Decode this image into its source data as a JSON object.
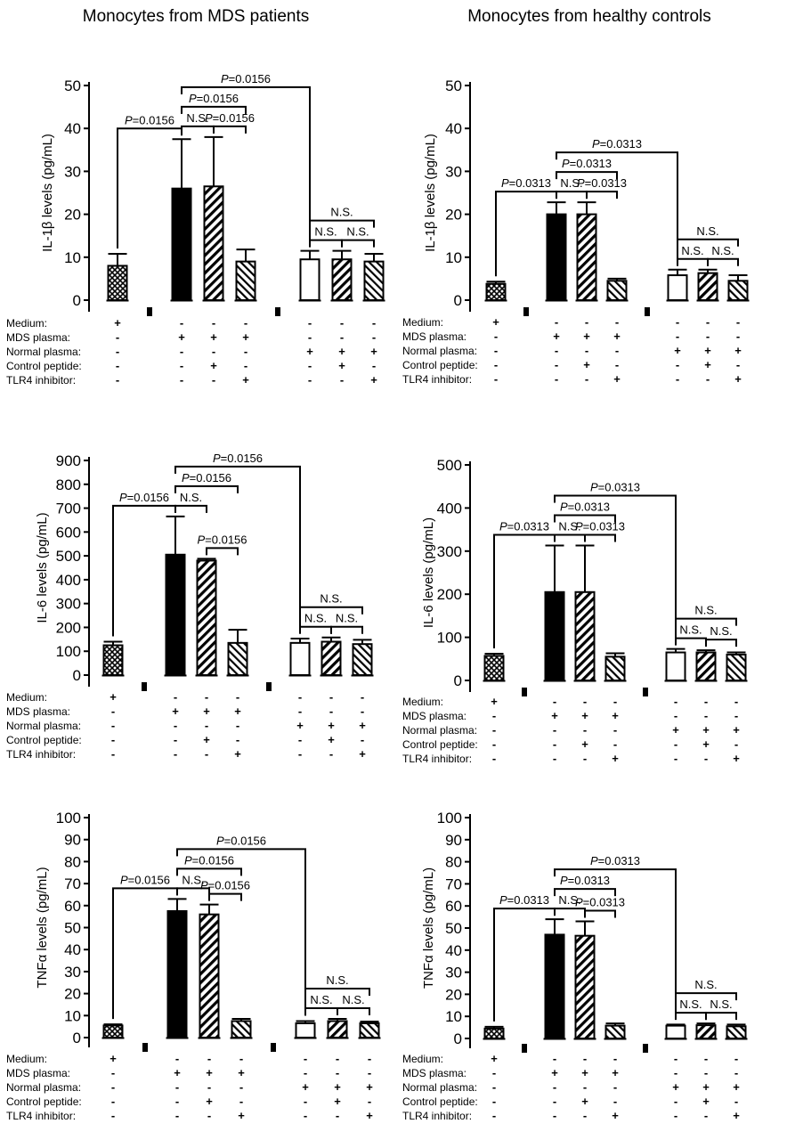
{
  "columns": {
    "left_title": "Monocytes from MDS patients",
    "right_title": "Monocytes from healthy controls"
  },
  "condition_labels": [
    "Medium:",
    "MDS plasma:",
    "Normal plasma:",
    "Control peptide:",
    "TLR4 inhibitor:"
  ],
  "condition_signs": [
    [
      "+",
      "",
      "-",
      "-",
      "-",
      "",
      "-",
      "-",
      "-"
    ],
    [
      "-",
      "",
      "+",
      "+",
      "+",
      "",
      "-",
      "-",
      "-"
    ],
    [
      "-",
      "",
      "-",
      "-",
      "-",
      "",
      "+",
      "+",
      "+"
    ],
    [
      "-",
      "",
      "-",
      "+",
      "-",
      "",
      "-",
      "+",
      "-"
    ],
    [
      "-",
      "",
      "-",
      "-",
      "+",
      "",
      "-",
      "-",
      "+"
    ]
  ],
  "bar_styles": [
    "crosshatch",
    "break",
    "solid",
    "diag",
    "diag-rev",
    "break",
    "open",
    "diag",
    "diag-rev"
  ],
  "chart_data": [
    {
      "id": "il1b-mds",
      "type": "bar",
      "column": "left",
      "ylabel": "IL-1β levels (pg/mL)",
      "ylim": [
        0,
        50
      ],
      "yticks": [
        0,
        10,
        20,
        30,
        40,
        50
      ],
      "bar_values": [
        8,
        null,
        26,
        26.5,
        9,
        null,
        9.5,
        9.5,
        9
      ],
      "bar_errors": [
        2.8,
        null,
        11.5,
        11.5,
        2.8,
        null,
        2,
        2,
        1.8
      ],
      "annotations": [
        {
          "from": 0,
          "to": 2,
          "label_prefix": "P",
          "label": "=0.0156"
        },
        {
          "from": 2,
          "to": 3,
          "label_prefix": "",
          "label": "N.S."
        },
        {
          "from": 3,
          "to": 4,
          "label_prefix": "P",
          "label": "=0.0156"
        },
        {
          "from": 2,
          "to": 4,
          "label_prefix": "P",
          "label": "=0.0156"
        },
        {
          "from": 2,
          "to": 6,
          "label_prefix": "P",
          "label": "=0.0156"
        },
        {
          "from": 6,
          "to": 7,
          "label_prefix": "",
          "label": "N.S."
        },
        {
          "from": 7,
          "to": 8,
          "label_prefix": "",
          "label": "N.S."
        },
        {
          "from": 6,
          "to": 8,
          "label_prefix": "",
          "label": "N.S."
        }
      ]
    },
    {
      "id": "il1b-healthy",
      "type": "bar",
      "column": "right",
      "ylabel": "IL-1β levels (pg/mL)",
      "ylim": [
        0,
        50
      ],
      "yticks": [
        0,
        10,
        20,
        30,
        40,
        50
      ],
      "bar_values": [
        3.8,
        null,
        20,
        20,
        4.5,
        null,
        5.8,
        6.3,
        4.5
      ],
      "bar_errors": [
        0.5,
        null,
        2.8,
        2.8,
        0.5,
        null,
        1.3,
        0.8,
        1.3
      ],
      "annotations": [
        {
          "from": 0,
          "to": 2,
          "label_prefix": "P",
          "label": "=0.0313"
        },
        {
          "from": 2,
          "to": 3,
          "label_prefix": "",
          "label": "N.S."
        },
        {
          "from": 3,
          "to": 4,
          "label_prefix": "P",
          "label": "=0.0313"
        },
        {
          "from": 2,
          "to": 4,
          "label_prefix": "P",
          "label": "=0.0313"
        },
        {
          "from": 2,
          "to": 6,
          "label_prefix": "P",
          "label": "=0.0313"
        },
        {
          "from": 6,
          "to": 7,
          "label_prefix": "",
          "label": "N.S."
        },
        {
          "from": 7,
          "to": 8,
          "label_prefix": "",
          "label": "N.S."
        },
        {
          "from": 6,
          "to": 8,
          "label_prefix": "",
          "label": "N.S."
        }
      ]
    },
    {
      "id": "il6-mds",
      "type": "bar",
      "column": "left",
      "ylabel": "IL-6 levels (pg/mL)",
      "ylim": [
        0,
        900
      ],
      "yticks": [
        0,
        100,
        200,
        300,
        400,
        500,
        600,
        700,
        800,
        900
      ],
      "bar_values": [
        125,
        null,
        505,
        480,
        135,
        null,
        135,
        140,
        130
      ],
      "bar_errors": [
        15,
        null,
        160,
        8,
        55,
        null,
        18,
        18,
        18
      ],
      "annotations": [
        {
          "from": 0,
          "to": 2,
          "label_prefix": "P",
          "label": "=0.0156"
        },
        {
          "from": 2,
          "to": 3,
          "label_prefix": "",
          "label": "N.S."
        },
        {
          "from": 3,
          "to": 4,
          "label_prefix": "P",
          "label": "=0.0156"
        },
        {
          "from": 2,
          "to": 4,
          "label_prefix": "P",
          "label": "=0.0156"
        },
        {
          "from": 2,
          "to": 6,
          "label_prefix": "P",
          "label": "=0.0156"
        },
        {
          "from": 6,
          "to": 7,
          "label_prefix": "",
          "label": "N.S."
        },
        {
          "from": 7,
          "to": 8,
          "label_prefix": "",
          "label": "N.S."
        },
        {
          "from": 6,
          "to": 8,
          "label_prefix": "",
          "label": "N.S."
        }
      ]
    },
    {
      "id": "il6-healthy",
      "type": "bar",
      "column": "right",
      "ylabel": "IL-6 levels (pg/mL)",
      "ylim": [
        0,
        500
      ],
      "yticks": [
        0,
        100,
        200,
        300,
        400,
        500
      ],
      "bar_values": [
        57,
        null,
        205,
        205,
        55,
        null,
        65,
        65,
        60
      ],
      "bar_errors": [
        5,
        null,
        108,
        108,
        8,
        null,
        8,
        5,
        5
      ],
      "annotations": [
        {
          "from": 0,
          "to": 2,
          "label_prefix": "P",
          "label": "=0.0313"
        },
        {
          "from": 2,
          "to": 3,
          "label_prefix": "",
          "label": "N.S."
        },
        {
          "from": 3,
          "to": 4,
          "label_prefix": "P",
          "label": "=0.0313"
        },
        {
          "from": 2,
          "to": 4,
          "label_prefix": "P",
          "label": "=0.0313"
        },
        {
          "from": 2,
          "to": 6,
          "label_prefix": "P",
          "label": "=0.0313"
        },
        {
          "from": 6,
          "to": 7,
          "label_prefix": "",
          "label": "N.S."
        },
        {
          "from": 7,
          "to": 8,
          "label_prefix": "",
          "label": "N.S."
        },
        {
          "from": 6,
          "to": 8,
          "label_prefix": "",
          "label": "N.S."
        }
      ]
    },
    {
      "id": "tnfa-mds",
      "type": "bar",
      "column": "left",
      "ylabel": "TNFα levels (pg/mL)",
      "ylim": [
        0,
        100
      ],
      "yticks": [
        0,
        10,
        20,
        30,
        40,
        50,
        60,
        70,
        80,
        90,
        100
      ],
      "bar_values": [
        5.5,
        null,
        57.5,
        56,
        7.5,
        null,
        6.5,
        7.5,
        6.5
      ],
      "bar_errors": [
        0.5,
        null,
        5.5,
        4.5,
        1,
        null,
        1,
        1,
        0.8
      ],
      "annotations": [
        {
          "from": 0,
          "to": 2,
          "label_prefix": "P",
          "label": "=0.0156"
        },
        {
          "from": 2,
          "to": 3,
          "label_prefix": "",
          "label": "N.S."
        },
        {
          "from": 3,
          "to": 4,
          "label_prefix": "P",
          "label": "=0.0156"
        },
        {
          "from": 2,
          "to": 4,
          "label_prefix": "P",
          "label": "=0.0156"
        },
        {
          "from": 2,
          "to": 6,
          "label_prefix": "P",
          "label": "=0.0156"
        },
        {
          "from": 6,
          "to": 7,
          "label_prefix": "",
          "label": "N.S."
        },
        {
          "from": 7,
          "to": 8,
          "label_prefix": "",
          "label": "N.S."
        },
        {
          "from": 6,
          "to": 8,
          "label_prefix": "",
          "label": "N.S."
        }
      ]
    },
    {
      "id": "tnfa-healthy",
      "type": "bar",
      "column": "right",
      "ylabel": "TNFα levels (pg/mL)",
      "ylim": [
        0,
        100
      ],
      "yticks": [
        0,
        10,
        20,
        30,
        40,
        50,
        60,
        70,
        80,
        90,
        100
      ],
      "bar_values": [
        4.5,
        null,
        47,
        46.5,
        5.8,
        null,
        5.8,
        6,
        5.5
      ],
      "bar_errors": [
        0.8,
        null,
        7,
        6.5,
        1,
        null,
        0.5,
        0.8,
        0.8
      ],
      "annotations": [
        {
          "from": 0,
          "to": 2,
          "label_prefix": "P",
          "label": "=0.0313"
        },
        {
          "from": 2,
          "to": 3,
          "label_prefix": "",
          "label": "N.S."
        },
        {
          "from": 3,
          "to": 4,
          "label_prefix": "P",
          "label": "=0.0313"
        },
        {
          "from": 2,
          "to": 4,
          "label_prefix": "P",
          "label": "=0.0313"
        },
        {
          "from": 2,
          "to": 6,
          "label_prefix": "P",
          "label": "=0.0313"
        },
        {
          "from": 6,
          "to": 7,
          "label_prefix": "",
          "label": "N.S."
        },
        {
          "from": 7,
          "to": 8,
          "label_prefix": "",
          "label": "N.S."
        },
        {
          "from": 6,
          "to": 8,
          "label_prefix": "",
          "label": "N.S."
        }
      ]
    }
  ]
}
